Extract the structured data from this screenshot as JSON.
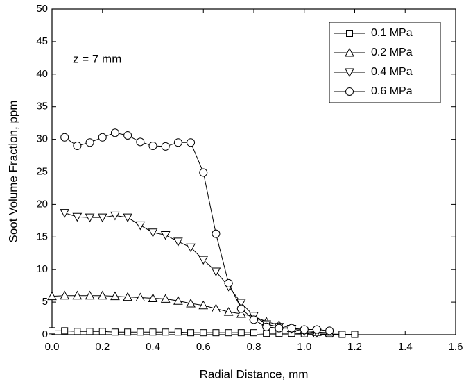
{
  "chart_data": {
    "type": "line",
    "annotation": "z = 7 mm",
    "xlabel": "Radial Distance, mm",
    "ylabel": "Soot Volume Fraction, ppm",
    "xlim": [
      0,
      1.6
    ],
    "ylim": [
      0,
      50
    ],
    "xticks": [
      {
        "value": 0,
        "label": "0.0"
      },
      0.2,
      0.4,
      0.6,
      0.8,
      {
        "value": 1,
        "label": "1.0"
      },
      1.2,
      1.4,
      1.6
    ],
    "yticks": [
      0,
      5,
      10,
      15,
      20,
      25,
      30,
      35,
      40,
      45,
      50
    ],
    "legend": "upper right",
    "series": [
      {
        "name": "0.1 MPa",
        "color": "#000000",
        "marker": "square",
        "x": [
          0,
          0.05,
          0.1,
          0.15,
          0.2,
          0.25,
          0.3,
          0.35,
          0.4,
          0.45,
          0.5,
          0.55,
          0.6,
          0.65,
          0.7,
          0.75,
          0.8,
          0.85,
          0.9,
          0.95,
          1.0,
          1.05,
          1.1,
          1.15,
          1.2
        ],
        "values": [
          0.6,
          0.6,
          0.5,
          0.5,
          0.5,
          0.4,
          0.4,
          0.4,
          0.4,
          0.4,
          0.4,
          0.3,
          0.3,
          0.3,
          0.3,
          0.3,
          0.3,
          0.2,
          0.2,
          0.2,
          0.15,
          0.1,
          0.1,
          0.05,
          0.05
        ]
      },
      {
        "name": "0.2 MPa",
        "color": "#000000",
        "marker": "triangle-up",
        "x": [
          0,
          0.05,
          0.1,
          0.15,
          0.2,
          0.25,
          0.3,
          0.35,
          0.4,
          0.45,
          0.5,
          0.55,
          0.6,
          0.65,
          0.7,
          0.75,
          0.8,
          0.85,
          0.9,
          0.95,
          1.0,
          1.05,
          1.1
        ],
        "values": [
          5.9,
          6.0,
          6.0,
          6.0,
          6.0,
          5.9,
          5.8,
          5.7,
          5.6,
          5.5,
          5.2,
          4.8,
          4.5,
          4.0,
          3.5,
          3.2,
          2.8,
          2.0,
          1.5,
          1.0,
          0.7,
          0.4,
          0.3
        ]
      },
      {
        "name": "0.4 MPa",
        "color": "#000000",
        "marker": "triangle-down",
        "x": [
          0.05,
          0.1,
          0.15,
          0.2,
          0.25,
          0.3,
          0.35,
          0.4,
          0.45,
          0.5,
          0.55,
          0.6,
          0.65,
          0.7,
          0.75,
          0.8,
          0.85,
          0.9,
          0.95,
          1.0,
          1.05
        ],
        "values": [
          18.7,
          18.1,
          18.0,
          18.0,
          18.3,
          18.0,
          16.8,
          15.7,
          15.3,
          14.3,
          13.4,
          11.5,
          9.7,
          7.4,
          4.9,
          2.9,
          1.6,
          1.2,
          0.9,
          0.5,
          0.3
        ]
      },
      {
        "name": "0.6 MPa",
        "color": "#000000",
        "marker": "circle",
        "x": [
          0.05,
          0.1,
          0.15,
          0.2,
          0.25,
          0.3,
          0.35,
          0.4,
          0.45,
          0.5,
          0.55,
          0.6,
          0.65,
          0.7,
          0.75,
          0.8,
          0.85,
          0.9,
          0.95,
          1.0,
          1.05,
          1.1
        ],
        "values": [
          30.3,
          29.0,
          29.5,
          30.3,
          31.0,
          30.6,
          29.6,
          29.0,
          28.9,
          29.5,
          29.5,
          24.9,
          15.5,
          7.9,
          4.0,
          2.3,
          1.2,
          1.0,
          1.0,
          0.8,
          0.8,
          0.6
        ]
      }
    ]
  }
}
